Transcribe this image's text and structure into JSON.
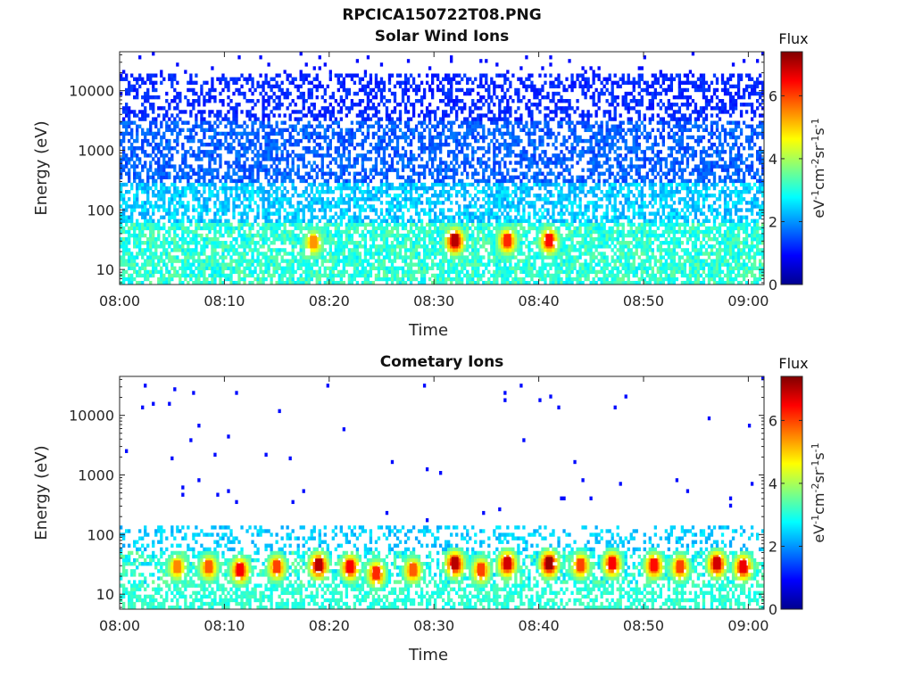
{
  "figure_title": "RPCICA150722T08.PNG",
  "colors": {
    "colormap": [
      "#00008f",
      "#0000ff",
      "#0080ff",
      "#00ffff",
      "#80ff80",
      "#ffff00",
      "#ff8000",
      "#ff0000",
      "#800000"
    ]
  },
  "chart_data": [
    {
      "type": "heatmap",
      "title": "Solar Wind Ions",
      "xlabel": "Time",
      "ylabel": "Energy (eV)",
      "x_ticks": [
        "08:00",
        "08:10",
        "08:20",
        "08:30",
        "08:40",
        "08:50",
        "09:00"
      ],
      "xlim_minutes": [
        0,
        61.5
      ],
      "y_ticks": [
        "10",
        "100",
        "1000",
        "10000"
      ],
      "y_tick_values": [
        10,
        100,
        1000,
        10000
      ],
      "ylim": [
        5.6,
        45000
      ],
      "y_scale": "log",
      "colorbar": {
        "label": "Flux",
        "unit": "eV-1cm-2sr-1s-1",
        "ticks": [
          "0",
          "2",
          "4",
          "6"
        ],
        "range": [
          0,
          7.4
        ]
      },
      "flux_peaks": [
        {
          "time_min": 32,
          "energy_ev": 30,
          "flux": 7.0
        },
        {
          "time_min": 37,
          "energy_ev": 30,
          "flux": 6.2
        },
        {
          "time_min": 41,
          "energy_ev": 30,
          "flux": 6.4
        },
        {
          "time_min": 18.5,
          "energy_ev": 28,
          "flux": 5.4
        }
      ]
    },
    {
      "type": "heatmap",
      "title": "Cometary Ions",
      "xlabel": "Time",
      "ylabel": "Energy (eV)",
      "x_ticks": [
        "08:00",
        "08:10",
        "08:20",
        "08:30",
        "08:40",
        "08:50",
        "09:00"
      ],
      "xlim_minutes": [
        0,
        61.5
      ],
      "y_ticks": [
        "10",
        "100",
        "1000",
        "10000"
      ],
      "y_tick_values": [
        10,
        100,
        1000,
        10000
      ],
      "ylim": [
        5.6,
        45000
      ],
      "y_scale": "log",
      "colorbar": {
        "label": "Flux",
        "unit": "eV-1cm-2sr-1s-1",
        "ticks": [
          "0",
          "2",
          "4",
          "6"
        ],
        "range": [
          0,
          7.4
        ]
      },
      "flux_peaks": [
        {
          "time_min": 5.5,
          "energy_ev": 28,
          "flux": 5.5
        },
        {
          "time_min": 8.5,
          "energy_ev": 28,
          "flux": 5.8
        },
        {
          "time_min": 11.5,
          "energy_ev": 25,
          "flux": 6.5
        },
        {
          "time_min": 15,
          "energy_ev": 28,
          "flux": 6.0
        },
        {
          "time_min": 19,
          "energy_ev": 30,
          "flux": 7.0
        },
        {
          "time_min": 22,
          "energy_ev": 28,
          "flux": 6.5
        },
        {
          "time_min": 24.5,
          "energy_ev": 22,
          "flux": 6.2
        },
        {
          "time_min": 28,
          "energy_ev": 25,
          "flux": 5.8
        },
        {
          "time_min": 32,
          "energy_ev": 32,
          "flux": 7.0
        },
        {
          "time_min": 34.5,
          "energy_ev": 25,
          "flux": 6.0
        },
        {
          "time_min": 37,
          "energy_ev": 32,
          "flux": 6.8
        },
        {
          "time_min": 41,
          "energy_ev": 32,
          "flux": 7.2
        },
        {
          "time_min": 44,
          "energy_ev": 30,
          "flux": 6.0
        },
        {
          "time_min": 47,
          "energy_ev": 32,
          "flux": 6.5
        },
        {
          "time_min": 51,
          "energy_ev": 30,
          "flux": 6.4
        },
        {
          "time_min": 53.5,
          "energy_ev": 28,
          "flux": 6.0
        },
        {
          "time_min": 57,
          "energy_ev": 32,
          "flux": 6.8
        },
        {
          "time_min": 59.5,
          "energy_ev": 28,
          "flux": 6.6
        }
      ]
    }
  ]
}
